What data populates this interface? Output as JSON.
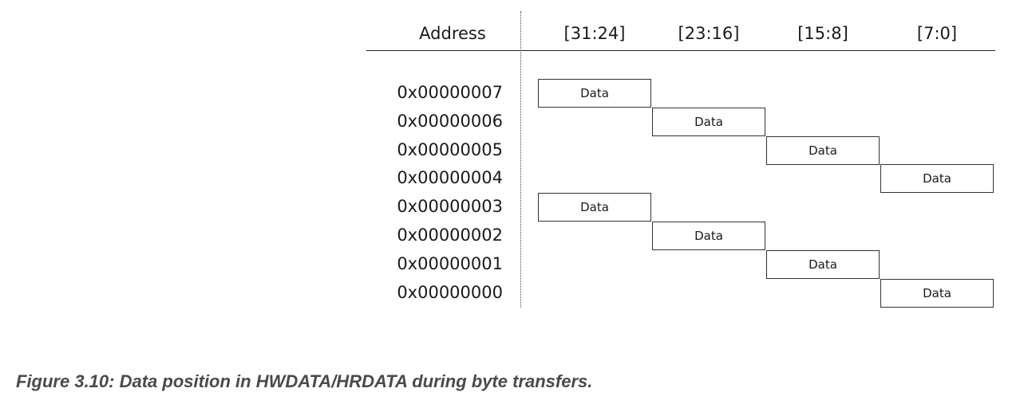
{
  "header": {
    "address_label": "Address",
    "lanes": [
      "[31:24]",
      "[23:16]",
      "[15:8]",
      "[7:0]"
    ]
  },
  "rows": [
    {
      "address": "0x00000007",
      "lane_index": 0,
      "label": "Data"
    },
    {
      "address": "0x00000006",
      "lane_index": 1,
      "label": "Data"
    },
    {
      "address": "0x00000005",
      "lane_index": 2,
      "label": "Data"
    },
    {
      "address": "0x00000004",
      "lane_index": 3,
      "label": "Data"
    },
    {
      "address": "0x00000003",
      "lane_index": 0,
      "label": "Data"
    },
    {
      "address": "0x00000002",
      "lane_index": 1,
      "label": "Data"
    },
    {
      "address": "0x00000001",
      "lane_index": 2,
      "label": "Data"
    },
    {
      "address": "0x00000000",
      "lane_index": 3,
      "label": "Data"
    }
  ],
  "caption": "Figure 3.10: Data position in HWDATA/HRDATA during byte transfers."
}
